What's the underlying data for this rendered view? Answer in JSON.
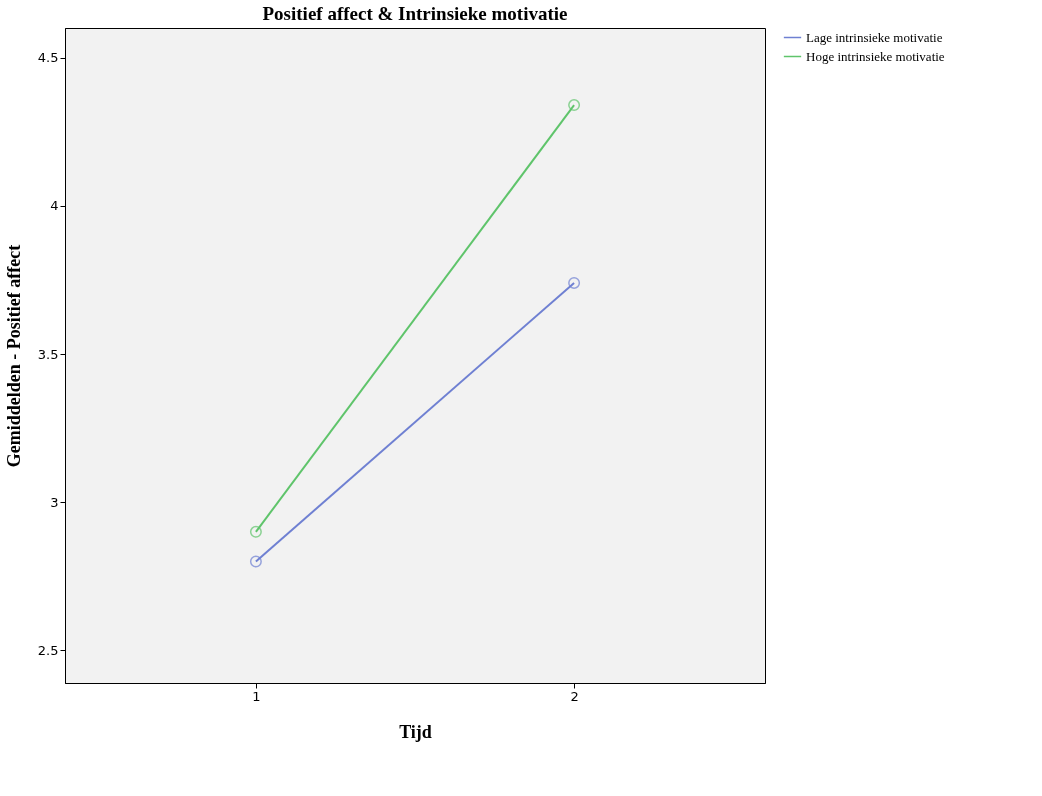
{
  "chart_data": {
    "type": "line",
    "title": "Positief affect & Intrinsieke motivatie",
    "xlabel": "Tijd",
    "ylabel": "Gemiddelden - Positief affect",
    "x": [
      1,
      2
    ],
    "series": [
      {
        "name": "Lage intrinsieke motivatie",
        "color": "#6f80d2",
        "values": [
          2.8,
          3.74
        ]
      },
      {
        "name": "Hoge intrinsieke motivatie",
        "color": "#5fc46b",
        "values": [
          2.9,
          4.34
        ]
      }
    ],
    "xlim": [
      0.4,
      2.6
    ],
    "xticks": [
      1,
      2
    ],
    "ylim": [
      2.39,
      4.6
    ],
    "yticks": [
      2.5,
      3,
      3.5,
      4,
      4.5
    ],
    "grid": false,
    "legend": "top right",
    "marker": "circle",
    "line_style": "solid"
  }
}
